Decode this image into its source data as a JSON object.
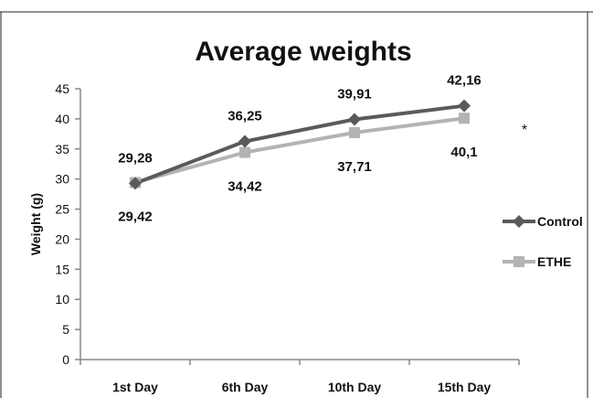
{
  "chart_data": {
    "type": "line",
    "title": "Average weights",
    "ylabel": "Weight (g)",
    "xlabel": "",
    "categories": [
      "1st Day",
      "6th Day",
      "10th Day",
      "15th Day"
    ],
    "ylim": [
      0,
      45
    ],
    "yticks": [
      0,
      5,
      10,
      15,
      20,
      25,
      30,
      35,
      40,
      45
    ],
    "grid": false,
    "legend_position": "right",
    "series": [
      {
        "name": "Control",
        "values": [
          29.28,
          36.25,
          39.91,
          42.16
        ],
        "labels": [
          "29,28",
          "36,25",
          "39,91",
          "42,16"
        ],
        "color": "#5a5a5a",
        "marker": "diamond"
      },
      {
        "name": "ETHE",
        "values": [
          29.42,
          34.42,
          37.71,
          40.1
        ],
        "labels": [
          "29,42",
          "34,42",
          "37,71",
          "40,1"
        ],
        "color": "#b3b3b3",
        "marker": "square"
      }
    ],
    "annotation": "*"
  }
}
